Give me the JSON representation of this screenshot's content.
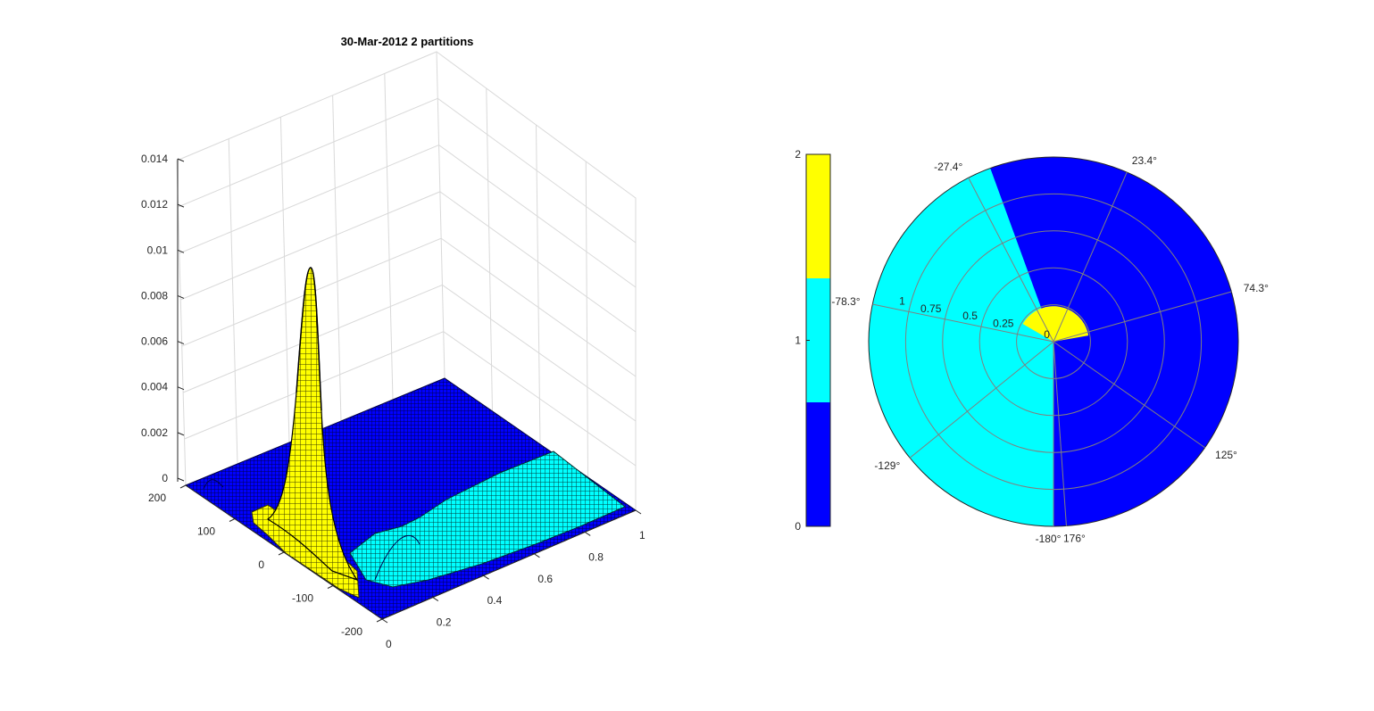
{
  "figure": {
    "title": "30-Mar-2012      2 partitions"
  },
  "chart_data": [
    {
      "type": "surface3d",
      "title": "30-Mar-2012      2 partitions",
      "z_ticks": [
        "0",
        "0.002",
        "0.004",
        "0.006",
        "0.008",
        "0.01",
        "0.012",
        "0.014"
      ],
      "zlim": [
        0,
        0.014
      ],
      "y_ticks": [
        "200",
        "100",
        "0",
        "-100",
        "-200"
      ],
      "ylim": [
        -200,
        200
      ],
      "x_ticks": [
        "0",
        "0.2",
        "0.4",
        "0.6",
        "0.8",
        "1"
      ],
      "xlim": [
        0,
        1
      ],
      "grid": true,
      "peak": {
        "x": 0.15,
        "y": 0,
        "z": 0.0093
      },
      "partition_colors": [
        "#0000ff",
        "#00ffff",
        "#ffff00"
      ]
    },
    {
      "type": "polar-partition",
      "colorbar": {
        "ticks": [
          "0",
          "1",
          "2"
        ],
        "colors": [
          "#0000ff",
          "#00ffff",
          "#ffff00"
        ]
      },
      "radial_ticks": [
        "0",
        "0.25",
        "0.5",
        "0.75",
        "1"
      ],
      "rlim": [
        0,
        1.25
      ],
      "angle_labels": [
        "23.4°",
        "74.3°",
        "125°",
        "176°",
        "-180°",
        "-129°",
        "-78.3°",
        "-27.4°"
      ],
      "regions": [
        {
          "value": 2,
          "color": "#ffff00",
          "theta_range": [
            -60,
            80
          ],
          "r_range": [
            0,
            0.24
          ]
        },
        {
          "value": 1,
          "color": "#00ffff",
          "theta_range": [
            -180,
            -20
          ],
          "r_range": [
            0,
            1.25
          ]
        },
        {
          "value": 0,
          "color": "#0000ff",
          "theta_range": [
            -20,
            180
          ],
          "r_range": [
            0,
            1.25
          ]
        }
      ]
    }
  ]
}
